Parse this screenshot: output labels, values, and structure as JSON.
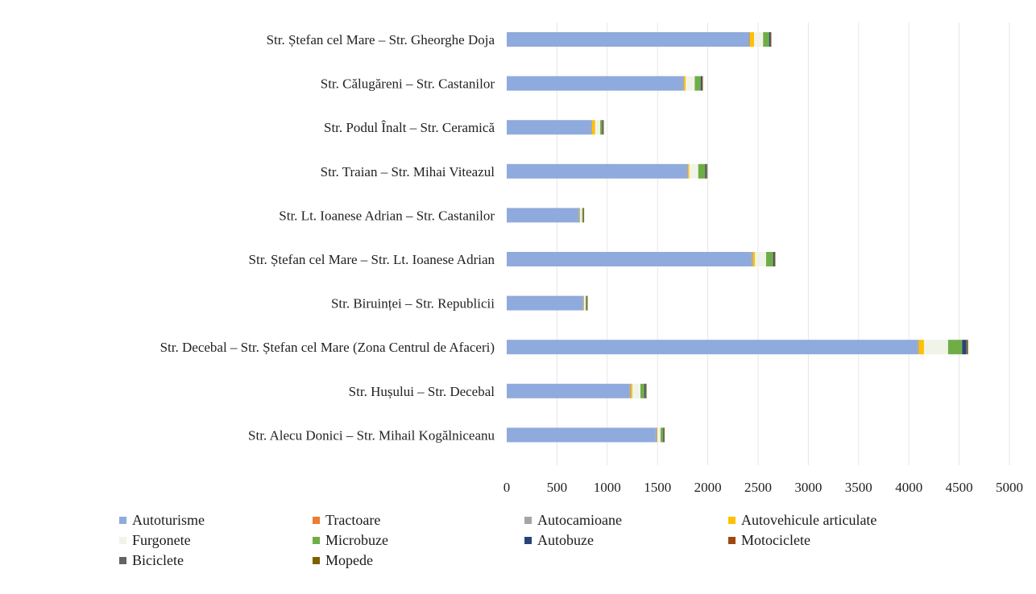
{
  "chart_data": {
    "type": "bar",
    "orientation": "horizontal",
    "stacked": true,
    "title": "",
    "xlabel": "",
    "ylabel": "",
    "xlim": [
      0,
      5000
    ],
    "ticks": [
      "0",
      "500",
      "1000",
      "1500",
      "2000",
      "2500",
      "3000",
      "3500",
      "4000",
      "4500",
      "5000"
    ],
    "grid": true,
    "legend_position": "bottom",
    "categories": [
      "Str. Ștefan cel Mare – Str. Gheorghe Doja",
      "Str. Călugăreni – Str. Castanilor",
      "Str. Podul Înalt – Str. Ceramică",
      "Str. Traian – Str. Mihai Viteazul",
      "Str. Lt. Ioanese Adrian – Str. Castanilor",
      "Str. Ștefan cel Mare – Str. Lt. Ioanese Adrian",
      "Str. Biruinței – Str. Republicii",
      "Str. Decebal – Str. Ștefan cel Mare (Zona Centrul de Afaceri)",
      "Str. Hușului – Str. Decebal",
      "Str. Alecu Donici – Str. Mihail Kogălniceanu"
    ],
    "series": [
      {
        "name": "Autoturisme",
        "color": "#8faadc",
        "values": [
          2400,
          1750,
          840,
          1790,
          720,
          2430,
          760,
          4080,
          1220,
          1480
        ]
      },
      {
        "name": "Tractoare",
        "color": "#ed7d31",
        "values": [
          0,
          0,
          0,
          0,
          0,
          0,
          0,
          0,
          0,
          0
        ]
      },
      {
        "name": "Autocamioane",
        "color": "#a5a5a5",
        "values": [
          20,
          15,
          10,
          15,
          5,
          20,
          5,
          20,
          15,
          15
        ]
      },
      {
        "name": "Autovehicule articulate",
        "color": "#ffc000",
        "values": [
          40,
          15,
          30,
          10,
          5,
          20,
          5,
          50,
          15,
          5
        ]
      },
      {
        "name": "Furgonete",
        "color": "#f0f4e8",
        "values": [
          90,
          90,
          50,
          90,
          20,
          110,
          15,
          240,
          80,
          30
        ]
      },
      {
        "name": "Microbuze",
        "color": "#70ad47",
        "values": [
          60,
          60,
          20,
          70,
          10,
          70,
          10,
          140,
          40,
          25
        ]
      },
      {
        "name": "Autobuze",
        "color": "#264478",
        "values": [
          10,
          10,
          5,
          10,
          3,
          10,
          3,
          40,
          10,
          5
        ]
      },
      {
        "name": "Motociclete",
        "color": "#9e480e",
        "values": [
          3,
          3,
          2,
          3,
          1,
          3,
          1,
          5,
          3,
          2
        ]
      },
      {
        "name": "Biciclete",
        "color": "#636363",
        "values": [
          5,
          5,
          5,
          5,
          2,
          5,
          2,
          10,
          5,
          5
        ]
      },
      {
        "name": "Mopede",
        "color": "#7f6000",
        "values": [
          2,
          2,
          1,
          2,
          1,
          2,
          1,
          5,
          2,
          1
        ]
      }
    ]
  }
}
